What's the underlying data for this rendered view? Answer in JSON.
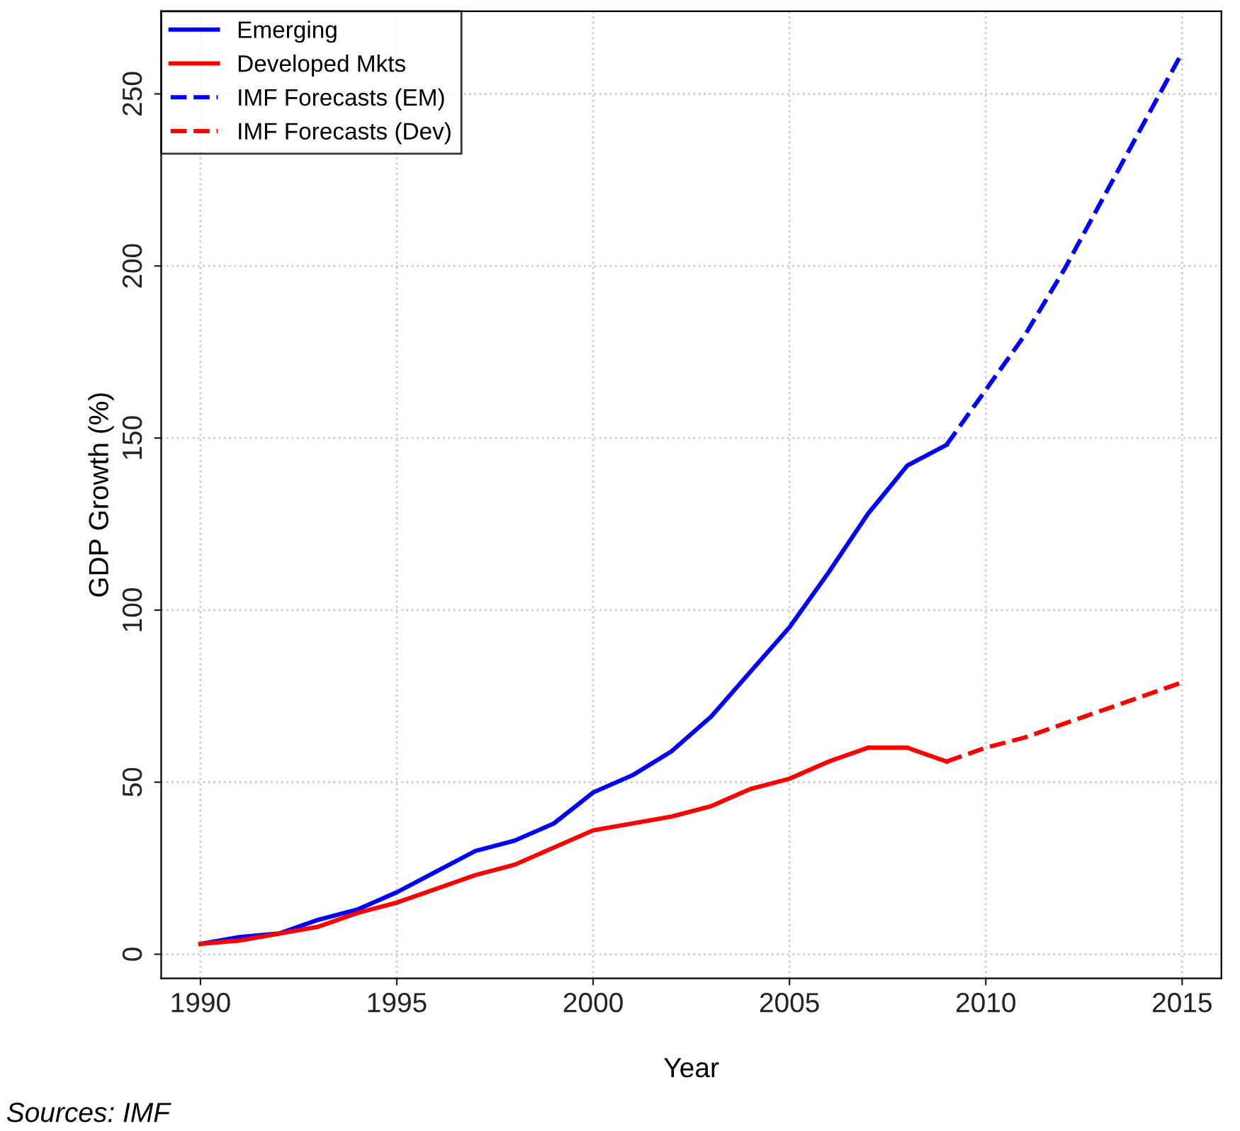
{
  "chart_data": {
    "type": "line",
    "xlabel": "Year",
    "ylabel": "GDP Growth (%)",
    "xlim": [
      1989,
      2016
    ],
    "ylim": [
      -7,
      274
    ],
    "xticks": [
      1990,
      1995,
      2000,
      2005,
      2010,
      2015
    ],
    "yticks": [
      0,
      50,
      100,
      150,
      200,
      250
    ],
    "grid": true,
    "legend": "top left",
    "marker": "none",
    "annotations": [
      "Sources: IMF"
    ],
    "series": [
      {
        "name": "Emerging",
        "color": "#0000ff",
        "line_style": "solid",
        "x": [
          1990,
          1991,
          1992,
          1993,
          1994,
          1995,
          1996,
          1997,
          1998,
          1999,
          2000,
          2001,
          2002,
          2003,
          2004,
          2005,
          2006,
          2007,
          2008,
          2009
        ],
        "values": [
          3,
          5,
          6,
          10,
          13,
          18,
          24,
          30,
          33,
          38,
          47,
          52,
          59,
          69,
          82,
          95,
          111,
          128,
          142,
          148
        ]
      },
      {
        "name": "Developed Mkts",
        "color": "#ff0000",
        "line_style": "solid",
        "x": [
          1990,
          1991,
          1992,
          1993,
          1994,
          1995,
          1996,
          1997,
          1998,
          1999,
          2000,
          2001,
          2002,
          2003,
          2004,
          2005,
          2006,
          2007,
          2008,
          2009
        ],
        "values": [
          3,
          4,
          6,
          8,
          12,
          15,
          19,
          23,
          26,
          31,
          36,
          38,
          40,
          43,
          48,
          51,
          56,
          60,
          60,
          56
        ]
      },
      {
        "name": "IMF Forecasts (EM)",
        "color": "#0000ff",
        "line_style": "dashed",
        "x": [
          2009,
          2010,
          2011,
          2012,
          2013,
          2014,
          2015
        ],
        "values": [
          148,
          164,
          180,
          199,
          220,
          241,
          262
        ]
      },
      {
        "name": "IMF Forecasts (Dev)",
        "color": "#ff0000",
        "line_style": "dashed",
        "x": [
          2009,
          2010,
          2011,
          2012,
          2013,
          2014,
          2015
        ],
        "values": [
          56,
          60,
          63,
          67,
          71,
          75,
          79
        ]
      }
    ]
  }
}
